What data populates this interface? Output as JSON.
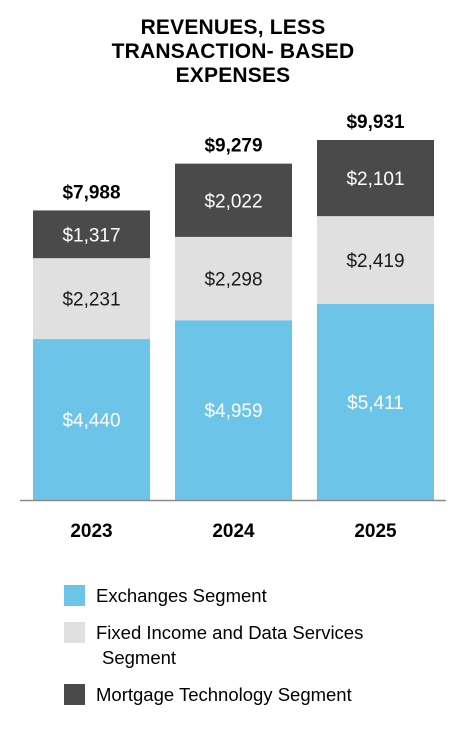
{
  "chart_data": {
    "type": "bar",
    "stacked": true,
    "title": [
      "REVENUES, LESS",
      "TRANSACTION- BASED",
      "EXPENSES"
    ],
    "categories": [
      "2023",
      "2024",
      "2025"
    ],
    "totals": [
      "$7,988",
      "$9,279",
      "$9,931"
    ],
    "series": [
      {
        "name": "Exchanges Segment",
        "values": [
          4440,
          4959,
          5411
        ],
        "labels": [
          "$4,440",
          "$4,959",
          "$5,411"
        ],
        "color": "#6cc5e9",
        "label_color": "#ffffff"
      },
      {
        "name": "Fixed Income and Data Services Segment",
        "name_lines": [
          "Fixed Income and Data Services",
          "Segment"
        ],
        "values": [
          2231,
          2298,
          2419
        ],
        "labels": [
          "$2,231",
          "$2,298",
          "$2,419"
        ],
        "color": "#e0e0e0",
        "label_color": "#1a1a1a"
      },
      {
        "name": "Mortgage Technology Segment",
        "values": [
          1317,
          2022,
          2101
        ],
        "labels": [
          "$1,317",
          "$2,022",
          "$2,101"
        ],
        "color": "#4a4a4a",
        "label_color": "#ffffff"
      }
    ],
    "ylim": [
      0,
      10000
    ],
    "grid": false,
    "legend": "bottom"
  }
}
